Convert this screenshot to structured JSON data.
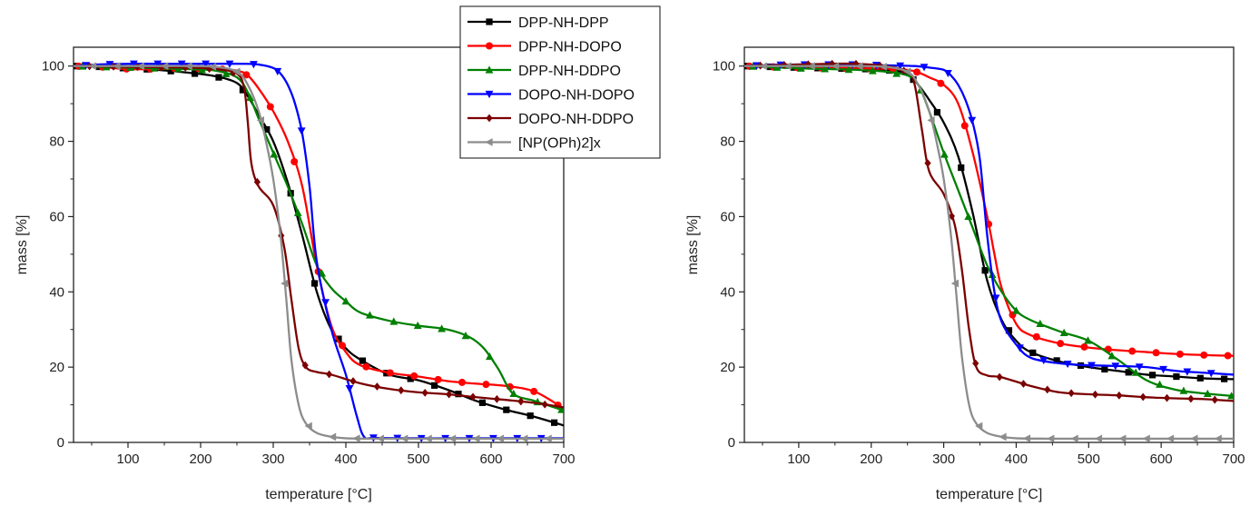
{
  "chart_data": [
    {
      "type": "line",
      "xlabel": "temperature [°C]",
      "ylabel": "mass [%]",
      "xlim": [
        25,
        700
      ],
      "ylim": [
        0,
        105
      ],
      "xticks": [
        100,
        200,
        300,
        400,
        500,
        600,
        700
      ],
      "yticks": [
        0,
        20,
        40,
        60,
        80,
        100
      ],
      "grid": false,
      "legend": "top-right, outside plot area",
      "series": [
        {
          "name": "DPP-NH-DPP",
          "color": "#000000",
          "marker": "square",
          "x": [
            25,
            60,
            100,
            140,
            180,
            220,
            250,
            265,
            280,
            300,
            320,
            340,
            360,
            380,
            400,
            420,
            460,
            500,
            540,
            580,
            620,
            660,
            700
          ],
          "y": [
            100,
            99.8,
            99.4,
            99,
            98.3,
            97.3,
            95.5,
            92,
            87,
            80,
            69,
            55,
            40,
            30,
            25,
            22,
            18,
            16.5,
            14,
            11,
            8.7,
            6.8,
            4.5
          ]
        },
        {
          "name": "DPP-NH-DOPO",
          "color": "#ff0000",
          "marker": "circle",
          "x": [
            25,
            60,
            100,
            140,
            180,
            220,
            250,
            265,
            280,
            300,
            320,
            340,
            360,
            380,
            400,
            420,
            460,
            500,
            540,
            580,
            620,
            660,
            700
          ],
          "y": [
            100,
            99.8,
            99.2,
            99.2,
            99.4,
            99.3,
            98.8,
            97.5,
            94,
            88,
            80,
            68,
            47,
            31,
            24,
            20.5,
            18.5,
            17.5,
            16.3,
            15.6,
            15,
            13.5,
            9
          ]
        },
        {
          "name": "DPP-NH-DDPO",
          "color": "#008000",
          "marker": "triangle-up",
          "x": [
            25,
            60,
            100,
            140,
            180,
            220,
            250,
            265,
            280,
            300,
            320,
            340,
            360,
            380,
            400,
            420,
            460,
            500,
            540,
            570,
            590,
            610,
            630,
            660,
            700
          ],
          "y": [
            100,
            99.8,
            99.6,
            99.4,
            99.2,
            98.8,
            97,
            93,
            86,
            77,
            68,
            58,
            47,
            41,
            37.5,
            34.5,
            32.3,
            31,
            30,
            28,
            25,
            19.5,
            13,
            11,
            8.5
          ]
        },
        {
          "name": "DOPO-NH-DOPO",
          "color": "#0000ff",
          "marker": "triangle-down",
          "x": [
            25,
            60,
            100,
            140,
            180,
            220,
            260,
            280,
            300,
            310,
            320,
            330,
            340,
            350,
            360,
            380,
            400,
            415,
            425,
            440,
            500,
            560,
            620,
            700
          ],
          "y": [
            100,
            100.4,
            100.6,
            100.6,
            100.6,
            100.6,
            100.6,
            100.4,
            99.5,
            98,
            95,
            90,
            82,
            68,
            48,
            30,
            18,
            7,
            1.5,
            1.2,
            1.1,
            1.1,
            1.1,
            1.1
          ]
        },
        {
          "name": "DOPO-NH-DDPO",
          "color": "#7b0000",
          "marker": "diamond",
          "x": [
            25,
            60,
            100,
            140,
            180,
            220,
            250,
            260,
            265,
            270,
            280,
            300,
            315,
            325,
            335,
            345,
            360,
            380,
            420,
            460,
            500,
            540,
            580,
            620,
            660,
            700
          ],
          "y": [
            100,
            99.9,
            99.8,
            99.7,
            99.6,
            99.2,
            98,
            94,
            85,
            74,
            68,
            63,
            52,
            38,
            25,
            20,
            18.7,
            18,
            15.7,
            14.2,
            13.3,
            12.8,
            12,
            11.3,
            10.5,
            9.3
          ]
        },
        {
          "name": "[NP(OPh)2]x",
          "color": "#8c8c8c",
          "marker": "left-triangle",
          "x": [
            25,
            60,
            100,
            140,
            180,
            220,
            250,
            265,
            280,
            290,
            300,
            310,
            318,
            325,
            335,
            345,
            360,
            380,
            400,
            440,
            500,
            560,
            620,
            700
          ],
          "y": [
            100,
            100,
            100,
            100,
            100,
            99.8,
            98.5,
            95,
            88,
            80,
            70,
            55,
            38,
            22,
            10,
            5,
            2.5,
            1.5,
            1.1,
            1,
            1,
            1,
            1,
            1
          ]
        }
      ]
    },
    {
      "type": "line",
      "xlabel": "temperature [°C]",
      "ylabel": "mass [%]",
      "xlim": [
        25,
        700
      ],
      "ylim": [
        0,
        105
      ],
      "xticks": [
        100,
        200,
        300,
        400,
        500,
        600,
        700
      ],
      "yticks": [
        0,
        20,
        40,
        60,
        80,
        100
      ],
      "grid": false,
      "legend": "none",
      "series": [
        {
          "name": "DPP-NH-DPP",
          "color": "#000000",
          "marker": "square",
          "x": [
            25,
            60,
            100,
            140,
            180,
            220,
            250,
            265,
            280,
            300,
            320,
            340,
            360,
            380,
            400,
            420,
            460,
            500,
            540,
            580,
            620,
            660,
            700
          ],
          "y": [
            100,
            99.8,
            99.6,
            99.4,
            99.3,
            99,
            98,
            95,
            91,
            85,
            76,
            61,
            43,
            32.5,
            27,
            24,
            21.5,
            20,
            19,
            18,
            17.5,
            17,
            16.8
          ]
        },
        {
          "name": "DPP-NH-DOPO",
          "color": "#ff0000",
          "marker": "circle",
          "x": [
            25,
            60,
            100,
            140,
            180,
            220,
            250,
            265,
            280,
            300,
            320,
            340,
            360,
            370,
            380,
            400,
            420,
            460,
            500,
            540,
            580,
            620,
            660,
            700
          ],
          "y": [
            100,
            99.8,
            99.6,
            99.5,
            99.4,
            99.3,
            99,
            98.3,
            97,
            95,
            90,
            77,
            60,
            50,
            41,
            31.5,
            28.5,
            26.3,
            25.2,
            24.5,
            24,
            23.5,
            23.2,
            23
          ]
        },
        {
          "name": "DPP-NH-DDPO",
          "color": "#008000",
          "marker": "triangle-up",
          "x": [
            25,
            60,
            100,
            140,
            180,
            220,
            250,
            265,
            280,
            300,
            320,
            340,
            360,
            380,
            400,
            420,
            460,
            500,
            540,
            580,
            620,
            660,
            700
          ],
          "y": [
            100,
            99.7,
            99.4,
            99.2,
            99,
            98.5,
            97.5,
            95,
            88,
            77,
            67,
            57,
            47,
            40,
            35,
            32.5,
            29.5,
            27,
            22,
            16.5,
            14,
            13,
            12.3
          ]
        },
        {
          "name": "DOPO-NH-DOPO",
          "color": "#0000ff",
          "marker": "triangle-down",
          "x": [
            25,
            60,
            100,
            140,
            180,
            220,
            260,
            280,
            300,
            310,
            320,
            330,
            340,
            350,
            360,
            370,
            380,
            400,
            420,
            460,
            500,
            540,
            580,
            620,
            660,
            700
          ],
          "y": [
            100,
            100.3,
            100.4,
            100.4,
            100.4,
            100.2,
            100,
            99.6,
            99,
            97.5,
            95,
            91,
            85,
            75,
            55,
            40,
            32,
            26,
            22.5,
            21,
            20.5,
            20.3,
            20,
            19,
            18.5,
            18
          ]
        },
        {
          "name": "DOPO-NH-DDPO",
          "color": "#7b0000",
          "marker": "diamond",
          "x": [
            25,
            60,
            100,
            140,
            180,
            220,
            250,
            260,
            270,
            280,
            300,
            315,
            325,
            335,
            345,
            360,
            380,
            420,
            460,
            500,
            540,
            580,
            620,
            660,
            700
          ],
          "y": [
            100,
            100.2,
            100.4,
            100.6,
            100.6,
            100,
            98.5,
            95,
            83,
            72,
            66,
            58,
            46,
            30,
            20,
            17.8,
            17.3,
            15,
            13.3,
            12.8,
            12.5,
            12,
            11.7,
            11.5,
            11
          ]
        },
        {
          "name": "[NP(OPh)2]x",
          "color": "#8c8c8c",
          "marker": "left-triangle",
          "x": [
            25,
            60,
            100,
            140,
            180,
            220,
            250,
            265,
            280,
            290,
            300,
            310,
            318,
            325,
            335,
            345,
            360,
            380,
            400,
            440,
            500,
            560,
            620,
            700
          ],
          "y": [
            100,
            100,
            100,
            100,
            100,
            99.8,
            98.5,
            95,
            88,
            80,
            70,
            55,
            38,
            23,
            10,
            5,
            2.5,
            1.5,
            1.1,
            1,
            1,
            1,
            1,
            1
          ]
        }
      ]
    }
  ]
}
